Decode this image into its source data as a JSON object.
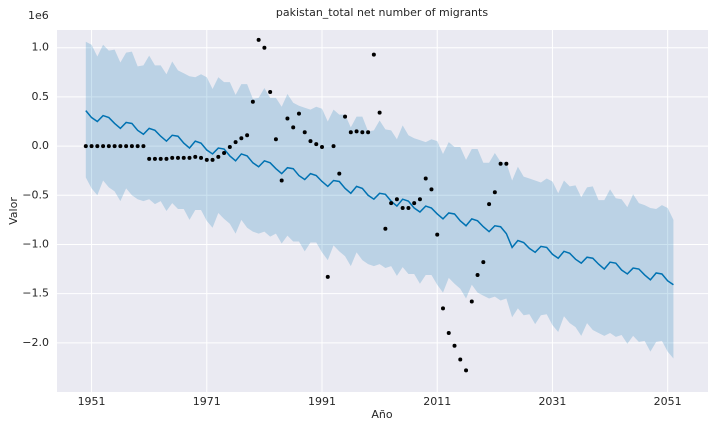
{
  "chart_data": {
    "type": "forecast",
    "title": "pakistan_total net number of migrants",
    "x_label": "Año",
    "y_label": "Valor",
    "y_offset_label": "1e6",
    "x": [
      1950,
      1951,
      1952,
      1953,
      1954,
      1955,
      1956,
      1957,
      1958,
      1959,
      1960,
      1961,
      1962,
      1963,
      1964,
      1965,
      1966,
      1967,
      1968,
      1969,
      1970,
      1971,
      1972,
      1973,
      1974,
      1975,
      1976,
      1977,
      1978,
      1979,
      1980,
      1981,
      1982,
      1983,
      1984,
      1985,
      1986,
      1987,
      1988,
      1989,
      1990,
      1991,
      1992,
      1993,
      1994,
      1995,
      1996,
      1997,
      1998,
      1999,
      2000,
      2001,
      2002,
      2003,
      2004,
      2005,
      2006,
      2007,
      2008,
      2009,
      2010,
      2011,
      2012,
      2013,
      2014,
      2015,
      2016,
      2017,
      2018,
      2019,
      2020,
      2021,
      2022,
      2023,
      2024,
      2025,
      2026,
      2027,
      2028,
      2029,
      2030,
      2031,
      2032,
      2033,
      2034,
      2035,
      2036,
      2037,
      2038,
      2039,
      2040,
      2041,
      2042,
      2043,
      2044,
      2045,
      2046,
      2047,
      2048,
      2049,
      2050,
      2051,
      2052
    ],
    "forecast": {
      "color": "#0072b2",
      "values": [
        0.36,
        0.29,
        0.25,
        0.31,
        0.29,
        0.23,
        0.18,
        0.24,
        0.23,
        0.16,
        0.12,
        0.18,
        0.16,
        0.1,
        0.05,
        0.11,
        0.1,
        0.03,
        -0.02,
        0.05,
        0.03,
        -0.04,
        -0.08,
        -0.02,
        -0.03,
        -0.1,
        -0.15,
        -0.08,
        -0.1,
        -0.17,
        -0.21,
        -0.15,
        -0.17,
        -0.23,
        -0.28,
        -0.22,
        -0.23,
        -0.3,
        -0.34,
        -0.28,
        -0.3,
        -0.36,
        -0.41,
        -0.35,
        -0.36,
        -0.43,
        -0.48,
        -0.41,
        -0.43,
        -0.5,
        -0.54,
        -0.48,
        -0.49,
        -0.56,
        -0.61,
        -0.54,
        -0.56,
        -0.63,
        -0.67,
        -0.61,
        -0.63,
        -0.69,
        -0.74,
        -0.68,
        -0.69,
        -0.76,
        -0.81,
        -0.74,
        -0.76,
        -0.82,
        -0.87,
        -0.81,
        -0.82,
        -0.89,
        -1.03,
        -0.96,
        -0.98,
        -1.04,
        -1.08,
        -1.02,
        -1.03,
        -1.1,
        -1.14,
        -1.07,
        -1.09,
        -1.15,
        -1.19,
        -1.13,
        -1.14,
        -1.2,
        -1.25,
        -1.18,
        -1.19,
        -1.26,
        -1.3,
        -1.24,
        -1.25,
        -1.31,
        -1.36,
        -1.29,
        -1.3,
        -1.37,
        -1.41
      ]
    },
    "interval": {
      "color": "#0072b2",
      "upper": [
        1.06,
        1.03,
        0.91,
        1.03,
        0.97,
        0.98,
        0.85,
        0.95,
        0.96,
        0.81,
        0.82,
        0.92,
        0.82,
        0.82,
        0.73,
        0.86,
        0.77,
        0.74,
        0.71,
        0.7,
        0.73,
        0.7,
        0.58,
        0.7,
        0.65,
        0.65,
        0.52,
        0.63,
        0.63,
        0.48,
        0.49,
        0.59,
        0.49,
        0.49,
        0.4,
        0.53,
        0.44,
        0.41,
        0.39,
        0.37,
        0.4,
        0.38,
        0.25,
        0.37,
        0.32,
        0.32,
        0.19,
        0.3,
        0.3,
        0.15,
        0.16,
        0.26,
        0.17,
        0.16,
        0.07,
        0.21,
        0.11,
        0.08,
        0.06,
        0.04,
        0.07,
        0.05,
        -0.08,
        0.04,
        -0.01,
        -0.01,
        -0.14,
        -0.03,
        -0.03,
        -0.17,
        -0.17,
        -0.07,
        -0.16,
        -0.17,
        -0.35,
        -0.21,
        -0.31,
        -0.33,
        -0.35,
        -0.37,
        -0.33,
        -0.36,
        -0.48,
        -0.35,
        -0.41,
        -0.4,
        -0.52,
        -0.42,
        -0.41,
        -0.55,
        -0.55,
        -0.44,
        -0.53,
        -0.54,
        -0.62,
        -0.49,
        -0.58,
        -0.6,
        -0.63,
        -0.64,
        -0.6,
        -0.63,
        -0.75
      ],
      "lower": [
        -0.32,
        -0.43,
        -0.5,
        -0.35,
        -0.42,
        -0.46,
        -0.56,
        -0.43,
        -0.5,
        -0.54,
        -0.56,
        -0.54,
        -0.59,
        -0.56,
        -0.66,
        -0.58,
        -0.64,
        -0.64,
        -0.75,
        -0.65,
        -0.65,
        -0.76,
        -0.83,
        -0.68,
        -0.74,
        -0.79,
        -0.89,
        -0.75,
        -0.83,
        -0.87,
        -0.89,
        -0.87,
        -0.92,
        -0.89,
        -0.99,
        -0.91,
        -0.97,
        -0.97,
        -1.07,
        -0.98,
        -0.98,
        -1.08,
        -1.16,
        -1.01,
        -1.07,
        -1.12,
        -1.22,
        -1.08,
        -1.16,
        -1.2,
        -1.22,
        -1.2,
        -1.24,
        -1.22,
        -1.32,
        -1.23,
        -1.3,
        -1.3,
        -1.4,
        -1.31,
        -1.31,
        -1.41,
        -1.49,
        -1.34,
        -1.4,
        -1.45,
        -1.55,
        -1.41,
        -1.49,
        -1.52,
        -1.55,
        -1.53,
        -1.57,
        -1.55,
        -1.74,
        -1.65,
        -1.72,
        -1.71,
        -1.81,
        -1.72,
        -1.71,
        -1.82,
        -1.89,
        -1.73,
        -1.8,
        -1.84,
        -1.93,
        -1.8,
        -1.87,
        -1.9,
        -1.93,
        -1.9,
        -1.94,
        -1.92,
        -2.01,
        -1.93,
        -1.99,
        -1.98,
        -2.09,
        -1.99,
        -1.98,
        -2.09,
        -2.16
      ]
    },
    "observed": {
      "color": "#000000",
      "x": [
        1950,
        1951,
        1952,
        1953,
        1954,
        1955,
        1956,
        1957,
        1958,
        1959,
        1960,
        1961,
        1962,
        1963,
        1964,
        1965,
        1966,
        1967,
        1968,
        1969,
        1970,
        1971,
        1972,
        1973,
        1974,
        1975,
        1976,
        1977,
        1978,
        1979,
        1980,
        1981,
        1982,
        1983,
        1984,
        1985,
        1986,
        1987,
        1988,
        1989,
        1990,
        1991,
        1992,
        1993,
        1994,
        1995,
        1996,
        1997,
        1998,
        1999,
        2000,
        2001,
        2002,
        2003,
        2004,
        2005,
        2006,
        2007,
        2008,
        2009,
        2010,
        2011,
        2012,
        2013,
        2014,
        2015,
        2016,
        2017,
        2018,
        2019,
        2020,
        2021,
        2022,
        2023
      ],
      "values": [
        0,
        0,
        0,
        0,
        0,
        0,
        0,
        0,
        0,
        0,
        0,
        -0.13,
        -0.13,
        -0.13,
        -0.13,
        -0.12,
        -0.12,
        -0.12,
        -0.12,
        -0.11,
        -0.12,
        -0.14,
        -0.14,
        -0.11,
        -0.07,
        -0.01,
        0.04,
        0.08,
        0.11,
        0.45,
        1.08,
        1.0,
        0.55,
        0.07,
        -0.35,
        0.28,
        0.19,
        0.33,
        0.14,
        0.05,
        0.02,
        -0.01,
        -1.33,
        0,
        -0.28,
        0.3,
        0.14,
        0.15,
        0.14,
        0.14,
        0.93,
        0.34,
        -0.84,
        -0.58,
        -0.54,
        -0.63,
        -0.63,
        -0.58,
        -0.54,
        -0.33,
        -0.44,
        -0.9,
        -1.65,
        -1.9,
        -2.03,
        -2.17,
        -2.28,
        -1.58,
        -1.31,
        -1.18,
        -0.59,
        -0.47,
        -0.18,
        -0.18
      ]
    },
    "xlim": [
      1945,
      2058
    ],
    "xticks": [
      1951,
      1971,
      1991,
      2011,
      2031,
      2051
    ],
    "ylim": [
      -2.5,
      1.18
    ],
    "yticks": [
      {
        "value": 1.0,
        "label": "1.0"
      },
      {
        "value": 0.5,
        "label": "0.5"
      },
      {
        "value": 0.0,
        "label": "0.0"
      },
      {
        "value": -0.5,
        "label": "−0.5"
      },
      {
        "value": -1.0,
        "label": "−1.0"
      },
      {
        "value": -1.5,
        "label": "−1.5"
      },
      {
        "value": -2.0,
        "label": "−2.0"
      }
    ],
    "grid": true
  }
}
